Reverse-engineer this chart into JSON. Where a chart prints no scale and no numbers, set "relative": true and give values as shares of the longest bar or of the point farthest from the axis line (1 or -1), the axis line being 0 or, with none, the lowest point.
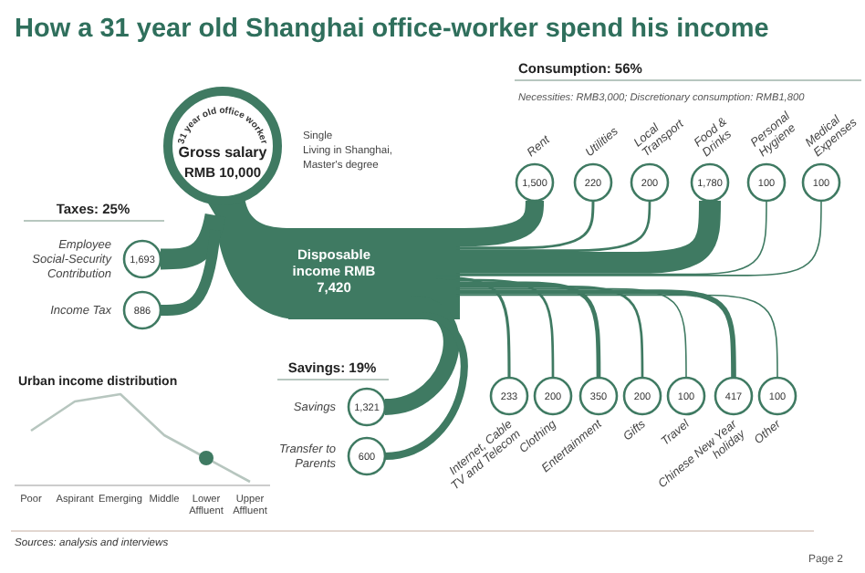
{
  "chart_data": [
    {
      "type": "other",
      "title": "How a 31 year old Shanghai office-worker spend his income",
      "color": "#3f7a62",
      "categories": [
        "Employee Social-Security Contribution",
        "Income Tax",
        "Savings",
        "Transfer to Parents",
        "Rent",
        "Utilities",
        "Local Transport",
        "Food & Drinks",
        "Personal Hygiene",
        "Medical Expenses",
        "Internet, Cable TV and Telecom",
        "Clothing",
        "Entertainment",
        "Gifts",
        "Travel",
        "Chinese New Year holiday",
        "Other"
      ],
      "values": [
        1693,
        886,
        1321,
        600,
        1500,
        220,
        200,
        1780,
        100,
        100,
        233,
        200,
        350,
        200,
        100,
        417,
        100
      ],
      "value_labels": [
        "1,693",
        "886",
        "1,321",
        "600",
        "1,500",
        "220",
        "200",
        "1,780",
        "100",
        "100",
        "233",
        "200",
        "350",
        "200",
        "100",
        "417",
        "100"
      ],
      "annotations": [
        "Taxes: 25%",
        "Savings: 19%",
        "Consumption: 56%",
        "Necessities: RMB3,000; Discretionary consumption: RMB1,800",
        "31 year old office worker",
        "Gross salary",
        "RMB 10,000",
        "Single",
        "Living in Shanghai,",
        "Master's degree",
        "Disposable",
        "income RMB",
        "7,420",
        "Sources: analysis and interviews",
        "Page 2"
      ]
    },
    {
      "type": "line",
      "title": "Urban income distribution",
      "relative": true,
      "categories": [
        "Poor",
        "Aspirant",
        "Emerging",
        "Middle",
        "Lower Affluent",
        "Upper Affluent"
      ],
      "series": [
        {
          "type": "line",
          "color": "#b7c6bf",
          "values": [
            0.6,
            0.92,
            1,
            0.55,
            0.3,
            0.04
          ]
        },
        {
          "type": "scatter",
          "color": "#3f7a62",
          "x": [
            "Lower Affluent"
          ],
          "values": [
            0.3
          ]
        }
      ]
    }
  ]
}
